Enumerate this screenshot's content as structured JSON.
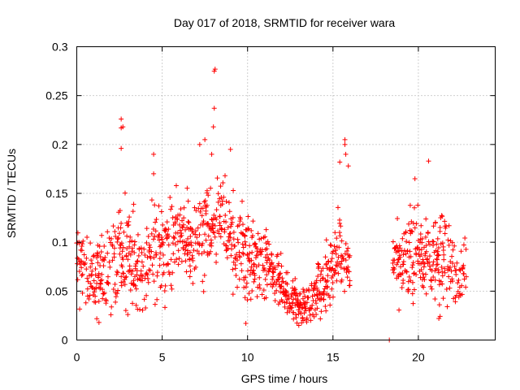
{
  "chart_data": {
    "type": "scatter",
    "title": "Day 017 of 2018, SRMTID for receiver wara",
    "xlabel": "GPS time / hours",
    "ylabel": "SRMTID / TECUs",
    "xlim": [
      0,
      24.5
    ],
    "ylim": [
      0,
      0.3
    ],
    "x_ticks": [
      0,
      5,
      10,
      15,
      20
    ],
    "x_tick_labels": [
      "0",
      "5",
      "10",
      "15",
      "20"
    ],
    "y_ticks": [
      0,
      0.05,
      0.1,
      0.15,
      0.2,
      0.25,
      0.3
    ],
    "y_tick_labels": [
      "0",
      "0.05",
      "0.1",
      "0.15",
      "0.2",
      "0.25",
      "0.3"
    ],
    "grid": true,
    "marker": "+",
    "series": [
      {
        "name": "SRMTID",
        "color": "#ff0000",
        "envelope": {
          "description": "Dense point cloud, approx. 2-min cadence; centre and half-spread per hour (TECU)",
          "hours": [
            0,
            0.5,
            1,
            1.5,
            2,
            2.5,
            3,
            3.5,
            4,
            4.5,
            5,
            5.5,
            6,
            6.5,
            7,
            7.5,
            8,
            8.5,
            9,
            9.5,
            10,
            10.5,
            11,
            11.5,
            12,
            12.5,
            13,
            13.5,
            14,
            14.5,
            15,
            15.5,
            16,
            18.5,
            19,
            19.5,
            20,
            20.5,
            21,
            21.5,
            22,
            22.5,
            22.8
          ],
          "centre": [
            0.085,
            0.08,
            0.06,
            0.065,
            0.07,
            0.08,
            0.085,
            0.075,
            0.07,
            0.09,
            0.085,
            0.095,
            0.1,
            0.1,
            0.11,
            0.105,
            0.12,
            0.12,
            0.1,
            0.1,
            0.08,
            0.085,
            0.08,
            0.065,
            0.055,
            0.045,
            0.035,
            0.035,
            0.045,
            0.06,
            0.08,
            0.085,
            0.07,
            0.075,
            0.08,
            0.08,
            0.085,
            0.08,
            0.085,
            0.08,
            0.075,
            0.07,
            0.065
          ],
          "spread": [
            0.03,
            0.035,
            0.03,
            0.035,
            0.035,
            0.04,
            0.04,
            0.035,
            0.03,
            0.04,
            0.035,
            0.035,
            0.035,
            0.035,
            0.035,
            0.035,
            0.04,
            0.04,
            0.035,
            0.035,
            0.035,
            0.035,
            0.03,
            0.025,
            0.02,
            0.018,
            0.015,
            0.016,
            0.02,
            0.025,
            0.03,
            0.03,
            0.02,
            0.03,
            0.035,
            0.035,
            0.035,
            0.035,
            0.035,
            0.035,
            0.03,
            0.03,
            0.02
          ]
        },
        "notable_points": [
          {
            "x": 2.6,
            "y": 0.226
          },
          {
            "x": 2.6,
            "y": 0.217
          },
          {
            "x": 2.7,
            "y": 0.218
          },
          {
            "x": 2.6,
            "y": 0.196
          },
          {
            "x": 4.5,
            "y": 0.19
          },
          {
            "x": 4.5,
            "y": 0.17
          },
          {
            "x": 7.2,
            "y": 0.2
          },
          {
            "x": 7.5,
            "y": 0.205
          },
          {
            "x": 7.9,
            "y": 0.19
          },
          {
            "x": 8.05,
            "y": 0.275
          },
          {
            "x": 8.1,
            "y": 0.277
          },
          {
            "x": 8.05,
            "y": 0.237
          },
          {
            "x": 8.0,
            "y": 0.218
          },
          {
            "x": 9.0,
            "y": 0.195
          },
          {
            "x": 15.4,
            "y": 0.182
          },
          {
            "x": 15.7,
            "y": 0.205
          },
          {
            "x": 15.7,
            "y": 0.2
          },
          {
            "x": 15.75,
            "y": 0.19
          },
          {
            "x": 15.9,
            "y": 0.178
          },
          {
            "x": 19.8,
            "y": 0.165
          },
          {
            "x": 20.6,
            "y": 0.183
          },
          {
            "x": 9.9,
            "y": 0.017
          },
          {
            "x": 1.3,
            "y": 0.018
          },
          {
            "x": 13.0,
            "y": 0.015
          },
          {
            "x": 21.2,
            "y": 0.022
          },
          {
            "x": 18.3,
            "y": 0.0
          }
        ]
      }
    ]
  }
}
